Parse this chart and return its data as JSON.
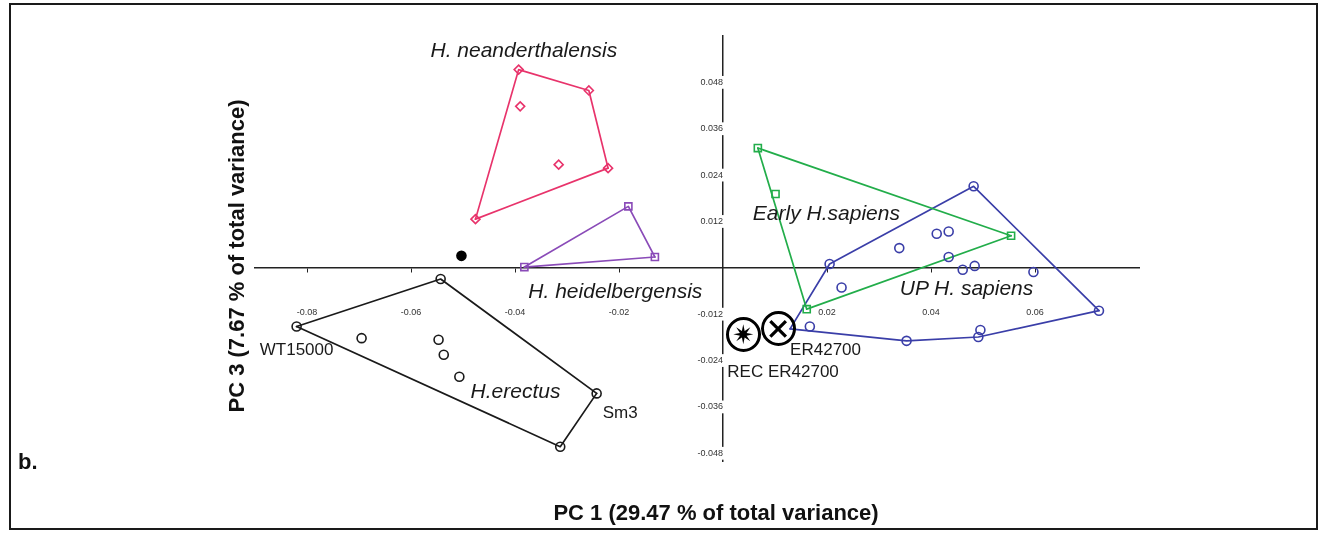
{
  "chart_data": {
    "type": "scatter",
    "xlabel": "PC 1 (29.47 % of total variance)",
    "ylabel": "PC 3 (7.67 % of total variance)",
    "xlim": [
      -0.09,
      0.08
    ],
    "ylim": [
      -0.05,
      0.06
    ],
    "xticks": [
      -0.08,
      -0.06,
      -0.04,
      -0.02,
      0.02,
      0.04,
      0.06
    ],
    "yticks": [
      -0.048,
      -0.036,
      -0.024,
      -0.012,
      0.012,
      0.024,
      0.036,
      0.048
    ],
    "grid": false,
    "legend": false,
    "series": [
      {
        "name": "H. neanderthalensis",
        "color": "#e8336b",
        "marker": "diamond",
        "x": [
          -0.0393,
          -0.0258,
          -0.039,
          -0.0316,
          -0.0221,
          -0.0476
        ],
        "values": [
          0.0513,
          0.0459,
          0.0418,
          0.0267,
          0.0258,
          0.0126
        ]
      },
      {
        "type": "line",
        "color": "#e8336b",
        "marker": "none",
        "x": [
          -0.0476,
          -0.0393,
          -0.0258,
          -0.0221
        ],
        "values": [
          0.0126,
          0.0513,
          0.0459,
          0.0258
        ]
      },
      {
        "type": "line",
        "color": "#e8336b",
        "marker": "none",
        "x": [
          -0.0476,
          -0.0221
        ],
        "values": [
          0.0126,
          0.0258
        ]
      },
      {
        "name": "H. heidelbergensis",
        "color": "#8a4bb8",
        "marker": "square",
        "x": [
          -0.0182,
          -0.0131,
          -0.0382
        ],
        "values": [
          0.0159,
          0.0028,
          0.0002
        ]
      },
      {
        "type": "line",
        "color": "#8a4bb8",
        "marker": "none",
        "x": [
          -0.0382,
          -0.0182,
          -0.0131
        ],
        "values": [
          0.0002,
          0.0159,
          0.0028
        ]
      },
      {
        "type": "line",
        "color": "#8a4bb8",
        "marker": "none",
        "x": [
          -0.0382,
          -0.0131
        ],
        "values": [
          0.0002,
          0.0028
        ]
      },
      {
        "color": "#000000",
        "marker": "circle",
        "x": [
          -0.0503
        ],
        "values": [
          0.0031
        ]
      },
      {
        "name": "H.erectus",
        "color": "#1a1a1a",
        "marker": "circle",
        "x": [
          -0.082,
          -0.0543,
          -0.0695,
          -0.0547,
          -0.0537,
          -0.0507,
          -0.0243,
          -0.0313
        ],
        "values": [
          -0.0152,
          -0.0029,
          -0.0182,
          -0.0186,
          -0.0225,
          -0.0282,
          -0.0325,
          -0.0463
        ]
      },
      {
        "type": "line",
        "color": "#1a1a1a",
        "marker": "none",
        "x": [
          -0.082,
          -0.0543,
          -0.0243
        ],
        "values": [
          -0.0152,
          -0.0029,
          -0.0325
        ]
      },
      {
        "type": "line",
        "color": "#1a1a1a",
        "marker": "none",
        "x": [
          -0.082,
          -0.0313,
          -0.0243
        ],
        "values": [
          -0.0152,
          -0.0463,
          -0.0325
        ]
      },
      {
        "name": "Early H.sapiens",
        "color": "#22ad4a",
        "marker": "square",
        "x": [
          0.0067,
          0.0101,
          0.0554,
          0.0161
        ],
        "values": [
          0.031,
          0.0191,
          0.0083,
          -0.0107
        ]
      },
      {
        "type": "line",
        "color": "#22ad4a",
        "marker": "none",
        "x": [
          0.0067,
          0.0554
        ],
        "values": [
          0.031,
          0.0083
        ]
      },
      {
        "type": "line",
        "color": "#22ad4a",
        "marker": "none",
        "x": [
          0.0067,
          0.0161,
          0.0554
        ],
        "values": [
          0.031,
          -0.0107,
          0.0083
        ]
      },
      {
        "name": "UP H. sapiens",
        "color": "#3a3ea8",
        "marker": "circle",
        "x": [
          0.0205,
          0.0482,
          0.0723,
          0.0495,
          0.0491,
          0.0353,
          0.0167,
          0.0228,
          0.0339,
          0.0411,
          0.0434,
          0.0434,
          0.0461,
          0.0484,
          0.0597
        ],
        "values": [
          0.001,
          0.0211,
          -0.0111,
          -0.0161,
          -0.0179,
          -0.0189,
          -0.0152,
          -0.0051,
          0.0051,
          0.0088,
          0.0094,
          0.0028,
          -0.0005,
          0.0005,
          -0.0011
        ]
      },
      {
        "type": "line",
        "color": "#3a3ea8",
        "marker": "none",
        "x": [
          0.0129,
          0.0205,
          0.0482,
          0.0723
        ],
        "values": [
          -0.0158,
          0.001,
          0.0211,
          -0.0111
        ]
      },
      {
        "type": "line",
        "color": "#3a3ea8",
        "marker": "none",
        "x": [
          0.0129,
          0.0353,
          0.0491,
          0.0723
        ],
        "values": [
          -0.0158,
          -0.0189,
          -0.0179,
          -0.0111
        ]
      },
      {
        "name": "ER42700",
        "color": "#000000",
        "marker": "cross",
        "x": [
          0.0106
        ],
        "values": [
          -0.0158
        ]
      },
      {
        "name": "REC ER42700",
        "color": "#000000",
        "marker": "star",
        "x": [
          0.0039
        ],
        "values": [
          -0.0172
        ]
      }
    ],
    "annotations": [
      {
        "text": "WT15000",
        "x": -0.082,
        "y": -0.0152
      },
      {
        "text": "Sm3",
        "x": -0.0243,
        "y": -0.0325
      },
      "b."
    ]
  }
}
